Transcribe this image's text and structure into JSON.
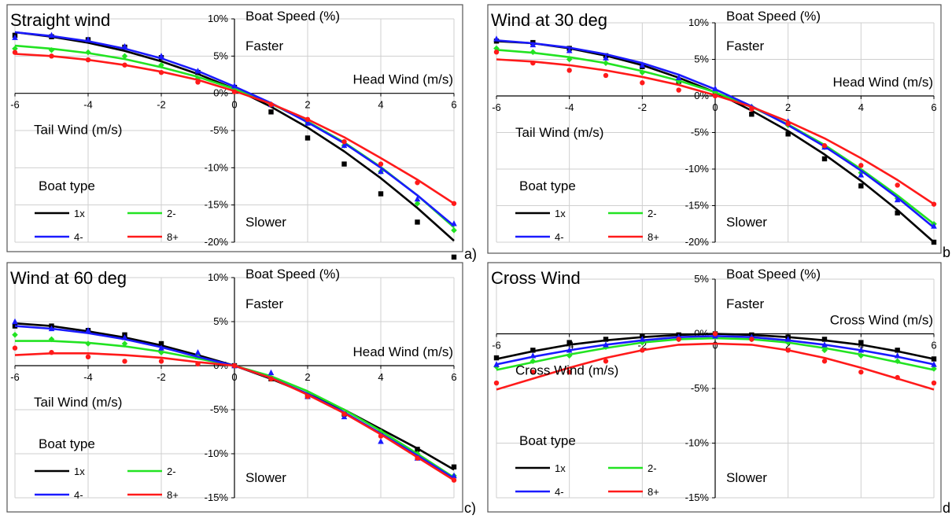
{
  "series_styles": [
    {
      "name": "1x",
      "color": "#000000",
      "marker": "square"
    },
    {
      "name": "2-",
      "color": "#22e322",
      "marker": "diamond"
    },
    {
      "name": "4-",
      "color": "#1a1aff",
      "marker": "triangle"
    },
    {
      "name": "8+",
      "color": "#ff1a1a",
      "marker": "circle"
    }
  ],
  "chart_data": [
    {
      "type": "line",
      "title": "Straight wind",
      "panel_letter": "a)",
      "ylabel": "Boat Speed (%)",
      "faster_label": "Faster",
      "slower_label": "Slower",
      "right_xlabel": "Head Wind (m/s)",
      "left_xlabel": "Tail Wind (m/s)",
      "legend_title": "Boat type",
      "xlim": [
        -6,
        6
      ],
      "ylim": [
        -20,
        10
      ],
      "x_ticks": [
        -6,
        -4,
        -2,
        0,
        2,
        4,
        6
      ],
      "x_tick_labels": [
        "-6",
        "-4",
        "-2",
        "0",
        "2",
        "4",
        "6"
      ],
      "y_ticks": [
        10,
        5,
        0,
        -5,
        -10,
        -15,
        -20
      ],
      "y_tick_labels": [
        "10%",
        "5%",
        "0%",
        "-5%",
        "-10%",
        "-15%",
        "-20%"
      ],
      "x": [
        -6,
        -5,
        -4,
        -3,
        -2,
        -1,
        0,
        1,
        2,
        3,
        4,
        5,
        6
      ],
      "series": [
        {
          "name": "1x",
          "values": [
            8.2,
            7.6,
            6.8,
            5.7,
            4.3,
            2.6,
            0.6,
            -1.8,
            -4.6,
            -7.8,
            -11.4,
            -15.4,
            -19.8
          ],
          "points": [
            7.8,
            7.6,
            7.2,
            6.2,
            4.8,
            2.8,
            0.8,
            -2.5,
            -6.0,
            -9.5,
            -13.5,
            -17.3,
            -22.0
          ]
        },
        {
          "name": "2-",
          "values": [
            6.4,
            6.0,
            5.4,
            4.6,
            3.5,
            2.2,
            0.6,
            -1.4,
            -3.8,
            -6.6,
            -9.9,
            -13.7,
            -18.0
          ],
          "points": [
            6.0,
            5.8,
            5.5,
            5.0,
            3.8,
            2.0,
            0.5,
            -1.5,
            -4.0,
            -7.0,
            -10.5,
            -14.8,
            -18.4
          ]
        },
        {
          "name": "4-",
          "values": [
            8.2,
            7.7,
            7.0,
            6.0,
            4.7,
            3.0,
            0.9,
            -1.3,
            -3.9,
            -6.7,
            -10.0,
            -13.7,
            -17.8
          ],
          "points": [
            7.5,
            7.8,
            7.2,
            6.3,
            5.0,
            3.0,
            1.0,
            -1.5,
            -4.0,
            -7.0,
            -10.5,
            -14.2,
            -17.5
          ]
        },
        {
          "name": "8+",
          "values": [
            5.3,
            5.0,
            4.5,
            3.8,
            2.9,
            1.8,
            0.3,
            -1.4,
            -3.5,
            -5.9,
            -8.7,
            -11.6,
            -14.8
          ],
          "points": [
            5.5,
            5.0,
            4.5,
            3.8,
            2.8,
            1.5,
            0.2,
            -1.5,
            -3.5,
            -6.5,
            -9.5,
            -12.0,
            -14.8
          ]
        }
      ]
    },
    {
      "type": "line",
      "title": "Wind at 30 deg",
      "panel_letter": "b",
      "ylabel": "Boat Speed (%)",
      "faster_label": "Faster",
      "slower_label": "Slower",
      "right_xlabel": "Head Wind (m/s)",
      "left_xlabel": "Tail Wind (m/s)",
      "legend_title": "Boat type",
      "xlim": [
        -6,
        6
      ],
      "ylim": [
        -20,
        10
      ],
      "x_ticks": [
        -6,
        -4,
        -2,
        0,
        2,
        4,
        6
      ],
      "x_tick_labels": [
        "-6",
        "-4",
        "-2",
        "0",
        "2",
        "4",
        "6"
      ],
      "y_ticks": [
        10,
        5,
        0,
        -5,
        -10,
        -15,
        -20
      ],
      "y_tick_labels": [
        "10%",
        "5%",
        "0%",
        "-5%",
        "-10%",
        "-15%",
        "-20%"
      ],
      "x": [
        -6,
        -5,
        -4,
        -3,
        -2,
        -1,
        0,
        1,
        2,
        3,
        4,
        5,
        6
      ],
      "series": [
        {
          "name": "1x",
          "values": [
            7.5,
            7.2,
            6.5,
            5.5,
            4.2,
            2.5,
            0.5,
            -2.0,
            -4.8,
            -8.0,
            -11.6,
            -15.6,
            -20.0
          ],
          "points": [
            7.5,
            7.3,
            6.5,
            5.5,
            4.0,
            2.0,
            0.4,
            -2.5,
            -5.2,
            -8.6,
            -12.3,
            -16.0,
            -20.0
          ]
        },
        {
          "name": "2-",
          "values": [
            6.3,
            5.9,
            5.3,
            4.5,
            3.4,
            2.1,
            0.5,
            -1.5,
            -3.9,
            -6.7,
            -10.0,
            -13.6,
            -17.5
          ],
          "points": [
            6.5,
            6.0,
            5.0,
            4.5,
            3.2,
            2.0,
            0.5,
            -1.5,
            -4.0,
            -7.0,
            -10.5,
            -14.0,
            -17.5
          ]
        },
        {
          "name": "4-",
          "values": [
            7.6,
            7.2,
            6.6,
            5.7,
            4.5,
            2.9,
            0.9,
            -1.4,
            -4.0,
            -6.9,
            -10.2,
            -13.9,
            -18.0
          ],
          "points": [
            7.8,
            7.0,
            6.2,
            5.2,
            4.2,
            2.5,
            1.0,
            -1.5,
            -3.5,
            -7.0,
            -10.8,
            -14.2,
            -17.8
          ]
        },
        {
          "name": "8+",
          "values": [
            5.0,
            4.7,
            4.2,
            3.5,
            2.6,
            1.5,
            0.1,
            -1.5,
            -3.5,
            -5.8,
            -8.5,
            -11.5,
            -14.8
          ],
          "points": [
            6.0,
            4.5,
            3.5,
            2.8,
            1.8,
            0.8,
            0.0,
            -1.8,
            -3.8,
            -6.8,
            -9.5,
            -12.2,
            -14.8
          ]
        }
      ]
    },
    {
      "type": "line",
      "title": "Wind at 60 deg",
      "panel_letter": "c)",
      "ylabel": "Boat Speed (%)",
      "faster_label": "Faster",
      "slower_label": "Slower",
      "right_xlabel": "Head Wind (m/s)",
      "left_xlabel": "Tail Wind (m/s)",
      "legend_title": "Boat type",
      "xlim": [
        -6,
        6
      ],
      "ylim": [
        -15,
        10
      ],
      "x_ticks": [
        -6,
        -4,
        -2,
        0,
        2,
        4,
        6
      ],
      "x_tick_labels": [
        "-6",
        "-4",
        "-2",
        "0",
        "2",
        "4",
        "6"
      ],
      "y_ticks": [
        10,
        5,
        0,
        -5,
        -10,
        -15
      ],
      "y_tick_labels": [
        "10%",
        "5%",
        "0%",
        "-5%",
        "-10%",
        "-15%"
      ],
      "x": [
        -6,
        -5,
        -4,
        -3,
        -2,
        -1,
        0,
        1,
        2,
        3,
        4,
        5,
        6
      ],
      "series": [
        {
          "name": "1x",
          "values": [
            4.8,
            4.5,
            3.9,
            3.2,
            2.3,
            1.2,
            0.0,
            -1.5,
            -3.2,
            -5.0,
            -7.2,
            -9.4,
            -11.8
          ],
          "points": [
            4.5,
            4.5,
            4.0,
            3.5,
            2.5,
            1.0,
            0.0,
            -1.5,
            -3.5,
            -5.5,
            -7.5,
            -9.5,
            -11.5
          ]
        },
        {
          "name": "2-",
          "values": [
            2.8,
            2.8,
            2.6,
            2.2,
            1.6,
            0.8,
            0.0,
            -1.2,
            -2.9,
            -5.0,
            -7.4,
            -10.0,
            -12.7
          ],
          "points": [
            3.5,
            3.0,
            2.5,
            2.5,
            1.5,
            1.0,
            0.0,
            -1.5,
            -3.2,
            -5.5,
            -7.5,
            -10.0,
            -12.5
          ]
        },
        {
          "name": "4-",
          "values": [
            4.5,
            4.2,
            3.7,
            3.0,
            2.1,
            1.0,
            0.0,
            -1.4,
            -3.2,
            -5.3,
            -7.7,
            -10.2,
            -12.8
          ],
          "points": [
            5.0,
            4.2,
            4.0,
            3.2,
            2.0,
            1.5,
            0.0,
            -0.8,
            -3.5,
            -5.8,
            -8.6,
            -10.5,
            -12.5
          ]
        },
        {
          "name": "8+",
          "values": [
            1.2,
            1.4,
            1.4,
            1.2,
            0.9,
            0.4,
            0.0,
            -1.4,
            -3.3,
            -5.4,
            -7.8,
            -10.4,
            -13.0
          ],
          "points": [
            2.0,
            1.5,
            1.0,
            0.5,
            0.5,
            0.2,
            0.0,
            -1.5,
            -3.5,
            -5.5,
            -8.0,
            -10.5,
            -13.0
          ]
        }
      ]
    },
    {
      "type": "line",
      "title": "Cross Wind",
      "panel_letter": "d",
      "ylabel": "Boat Speed (%)",
      "faster_label": "Faster",
      "slower_label": "Slower",
      "right_xlabel": "Cross Wind (m/s)",
      "left_xlabel": "Cross Wind (m/s)",
      "legend_title": "Boat type",
      "xlim": [
        -6,
        6
      ],
      "ylim": [
        -15,
        5
      ],
      "x_ticks": [
        -6,
        -4,
        -2,
        0,
        2,
        4,
        6
      ],
      "x_tick_labels": [
        "-6",
        "-4",
        "-2",
        "0",
        "2",
        "4",
        "6"
      ],
      "y_ticks": [
        5,
        0,
        -5,
        -10,
        -15
      ],
      "y_tick_labels": [
        "5%",
        "0%",
        "-5%",
        "-10%",
        "-15%"
      ],
      "x": [
        -6,
        -5,
        -4,
        -3,
        -2,
        -1,
        0,
        1,
        2,
        3,
        4,
        5,
        6
      ],
      "series": [
        {
          "name": "1x",
          "values": [
            -2.3,
            -1.6,
            -1.0,
            -0.6,
            -0.3,
            -0.1,
            0.0,
            -0.1,
            -0.3,
            -0.6,
            -1.0,
            -1.6,
            -2.3
          ],
          "points": [
            -2.2,
            -1.5,
            -0.8,
            -0.5,
            -0.2,
            -0.1,
            0.0,
            -0.1,
            -0.3,
            -0.5,
            -0.8,
            -1.5,
            -2.3
          ]
        },
        {
          "name": "2-",
          "values": [
            -3.3,
            -2.6,
            -1.9,
            -1.3,
            -0.8,
            -0.5,
            -0.4,
            -0.5,
            -0.8,
            -1.3,
            -1.9,
            -2.6,
            -3.3
          ],
          "points": [
            -3.0,
            -2.5,
            -2.0,
            -1.2,
            -0.8,
            -0.5,
            -0.3,
            -0.5,
            -0.8,
            -1.5,
            -2.0,
            -2.5,
            -3.2
          ]
        },
        {
          "name": "4-",
          "values": [
            -2.8,
            -2.1,
            -1.5,
            -1.0,
            -0.6,
            -0.3,
            -0.2,
            -0.3,
            -0.6,
            -1.0,
            -1.5,
            -2.1,
            -2.8
          ],
          "points": [
            -2.8,
            -2.0,
            -1.5,
            -1.0,
            -0.5,
            -0.3,
            -0.2,
            -0.3,
            -0.5,
            -1.0,
            -1.5,
            -2.0,
            -2.8
          ]
        },
        {
          "name": "8+",
          "values": [
            -5.1,
            -4.1,
            -3.1,
            -2.2,
            -1.5,
            -1.0,
            -0.9,
            -1.0,
            -1.5,
            -2.2,
            -3.1,
            -4.1,
            -5.1
          ],
          "points": [
            -4.5,
            -3.5,
            -3.5,
            -2.5,
            -1.5,
            -0.5,
            0.0,
            -0.5,
            -1.5,
            -2.5,
            -3.5,
            -4.0,
            -4.5
          ]
        }
      ]
    }
  ]
}
